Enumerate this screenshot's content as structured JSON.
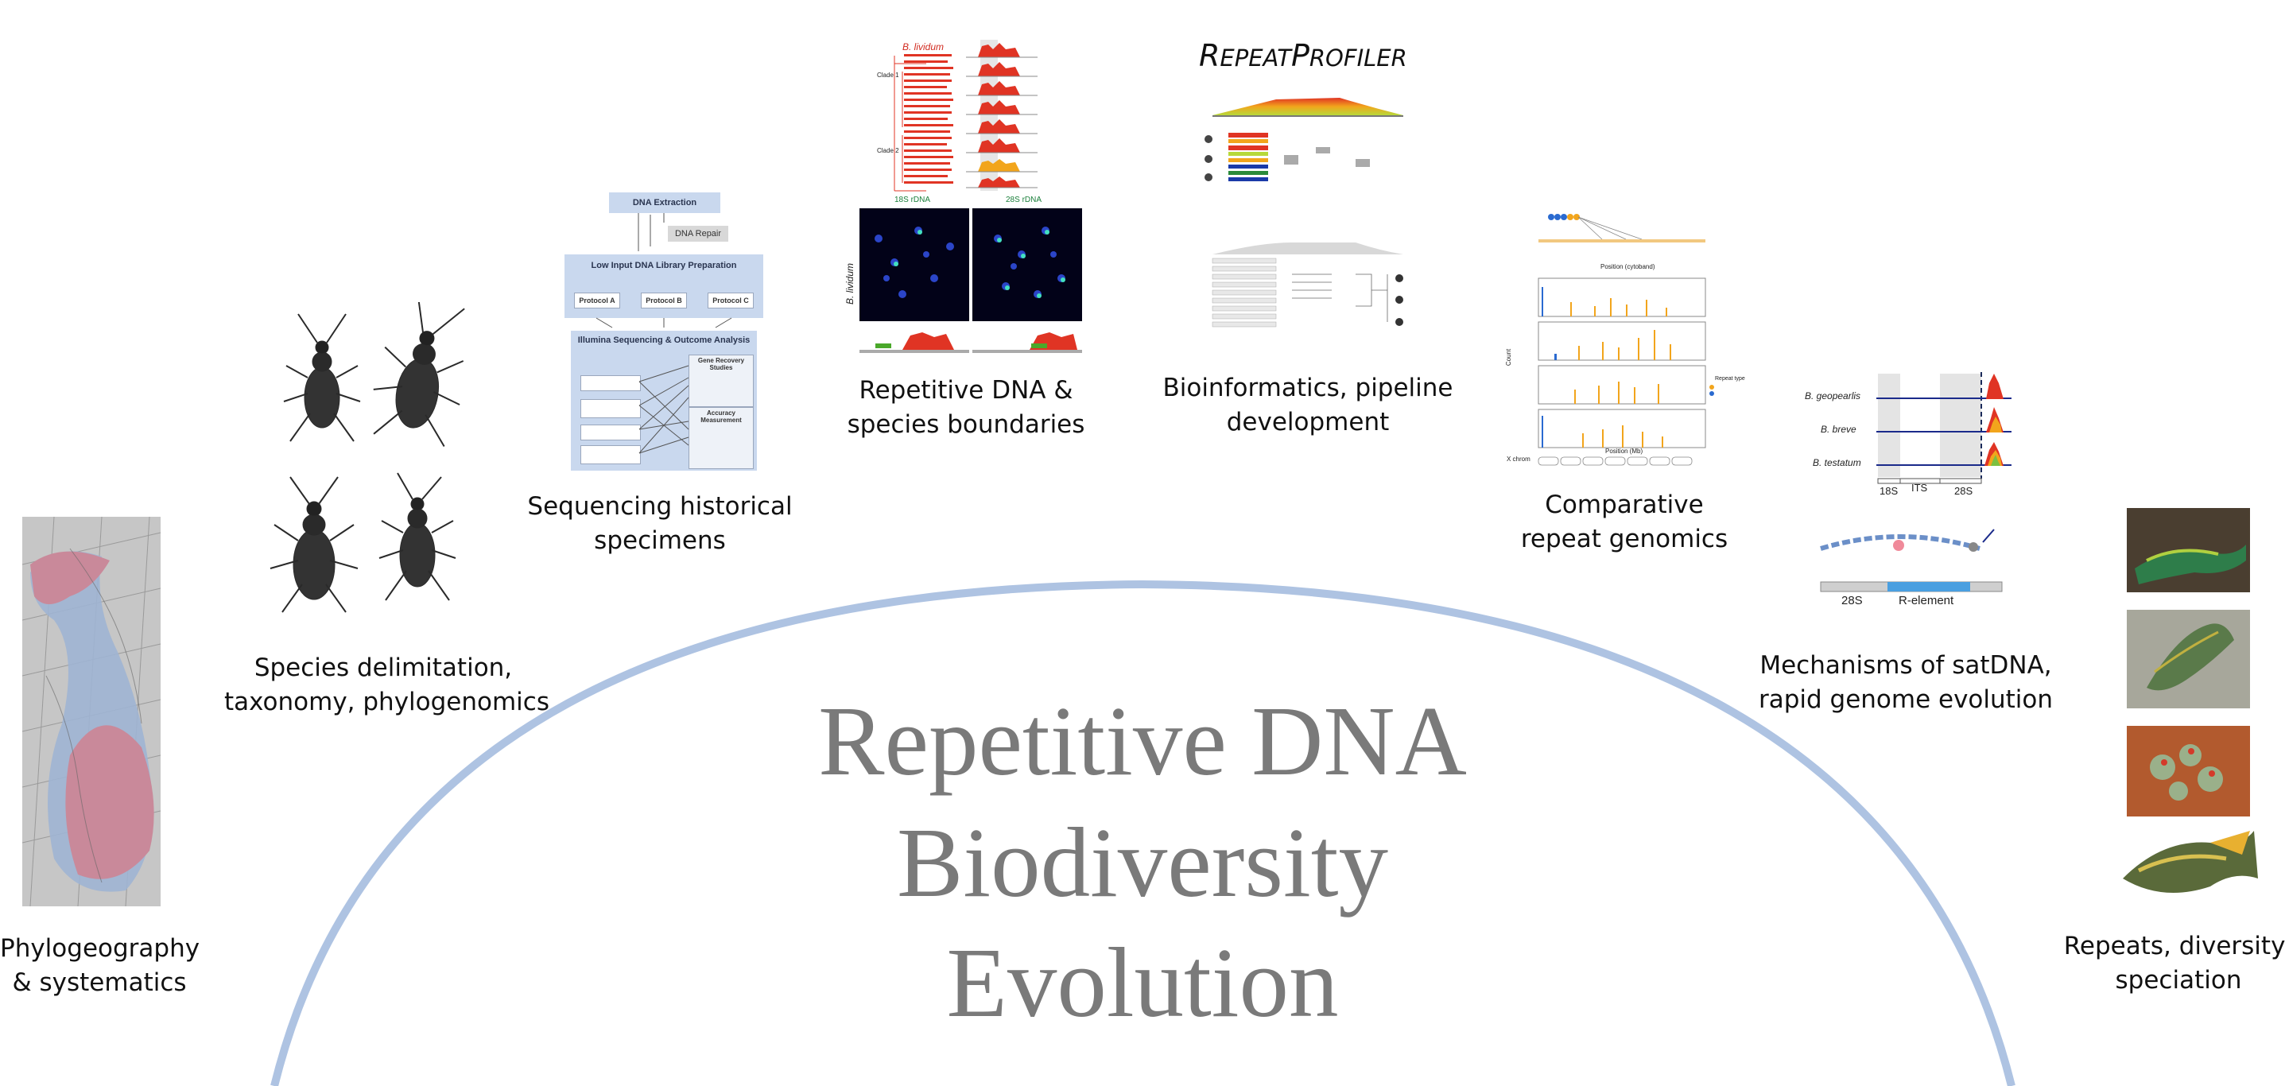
{
  "title": {
    "line1": "Repetitive DNA",
    "line2": "Biodiversity",
    "line3": "Evolution"
  },
  "captions": {
    "phylogeography": {
      "line1": "Phylogeography",
      "line2": "& systematics"
    },
    "species": {
      "line1": "Species delimitation,",
      "line2": "taxonomy, phylogenomics"
    },
    "historical": {
      "line1": "Sequencing historical",
      "line2": "specimens"
    },
    "boundaries": {
      "line1": "Repetitive DNA &",
      "line2": "species boundaries"
    },
    "bioinformatics": {
      "line1": "Bioinformatics, pipeline",
      "line2": "development"
    },
    "comparative": {
      "line1": "Comparative",
      "line2": "repeat genomics"
    },
    "mechanisms": {
      "line1": "Mechanisms of satDNA,",
      "line2": "rapid genome evolution"
    },
    "repeats": {
      "line1": "Repeats, diversity,",
      "line2": "speciation"
    }
  },
  "repeatprofiler": {
    "r": "R",
    "epeat": "EPEAT",
    "p": "P",
    "rofiler": "ROFILER"
  },
  "workflow": {
    "dna_extraction": "DNA Extraction",
    "dna_repair": "DNA Repair",
    "library_prep": "Low Input DNA Library Preparation",
    "protocol_a": "Protocol A",
    "protocol_b": "Protocol B",
    "protocol_c": "Protocol C",
    "sequencing": "Illumina Sequencing & Outcome Analysis",
    "gene_recovery": "Gene Recovery Studies",
    "accuracy": "Accuracy Measurement"
  },
  "boundaries_panel": {
    "species": "B. lividum",
    "rdna18": "18S rDNA",
    "rdna28": "28S rDNA",
    "clade1": "Clade 1",
    "clade2": "Clade 2"
  },
  "comparative_panel": {
    "position_cytoband": "Position (cytoband)",
    "position_mb": "Position (Mb)",
    "count": "Count",
    "x_chrom": "X chrom",
    "repeat_type": "Repeat type"
  },
  "mechanisms_panel": {
    "species1": "B. geopearlis",
    "species2": "B. breve",
    "species3": "B. testatum",
    "s18": "18S",
    "its": "ITS",
    "s28": "28S",
    "s28b": "28S",
    "r_element": "R-element"
  },
  "colors": {
    "arc": "#aec3e2",
    "title": "#7a7a7a",
    "map_red": "#c9899a",
    "map_blue": "#9fb4d3",
    "coverage_red": "#e03424",
    "coverage_orange": "#f2a51c",
    "flow_blue": "#c9d8ee"
  }
}
